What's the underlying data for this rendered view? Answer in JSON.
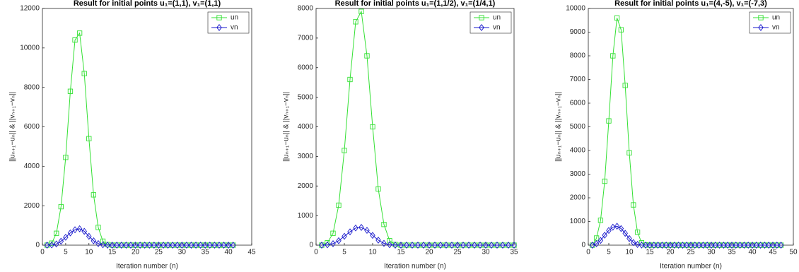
{
  "chart_data": [
    {
      "type": "line",
      "title": "Result for initial points u₁=(1,1), v₁=(1,1)",
      "x_label": "Iteration number (n)",
      "y_label": "||uₙ₊₁−uₙ|| & ||vₙ₊₁−vₙ||",
      "x": [
        1,
        2,
        3,
        4,
        5,
        6,
        7,
        8,
        9,
        10,
        11,
        12,
        13,
        14,
        15,
        16,
        17,
        18,
        19,
        20,
        21,
        22,
        23,
        24,
        25,
        26,
        27,
        28,
        29,
        30,
        31,
        32,
        33,
        34,
        35,
        36,
        37,
        38,
        39,
        40,
        41
      ],
      "series": [
        {
          "name": "un",
          "color": "#33e033",
          "marker": "square",
          "values": [
            0,
            100,
            600,
            1950,
            4450,
            7800,
            10400,
            10750,
            8700,
            5400,
            2550,
            900,
            200,
            30,
            0,
            0,
            0,
            0,
            0,
            0,
            0,
            0,
            0,
            0,
            0,
            0,
            0,
            0,
            0,
            0,
            0,
            0,
            0,
            0,
            0,
            0,
            0,
            0,
            0,
            0,
            0
          ]
        },
        {
          "name": "vn",
          "color": "#1a1acc",
          "marker": "diamond",
          "values": [
            0,
            10,
            60,
            200,
            400,
            620,
            780,
            830,
            700,
            450,
            220,
            80,
            20,
            0,
            0,
            0,
            0,
            0,
            0,
            0,
            0,
            0,
            0,
            0,
            0,
            0,
            0,
            0,
            0,
            0,
            0,
            0,
            0,
            0,
            0,
            0,
            0,
            0,
            0,
            0,
            0
          ]
        }
      ],
      "xlim": [
        0,
        45
      ],
      "xticks": [
        0,
        5,
        10,
        15,
        20,
        25,
        30,
        35,
        40,
        45
      ],
      "ylim": [
        0,
        12000
      ],
      "yticks": [
        0,
        2000,
        4000,
        6000,
        8000,
        10000,
        12000
      ],
      "legend": "top-right"
    },
    {
      "type": "line",
      "title": "Result for initial points u₁=(1,1/2), v₁=(1/4,1)",
      "x_label": "Iteration number (n)",
      "y_label": "||uₙ₊₁−uₙ|| & ||vₙ₊₁−vₙ||",
      "x": [
        1,
        2,
        3,
        4,
        5,
        6,
        7,
        8,
        9,
        10,
        11,
        12,
        13,
        14,
        15,
        16,
        17,
        18,
        19,
        20,
        21,
        22,
        23,
        24,
        25,
        26,
        27,
        28,
        29,
        30,
        31,
        32,
        33,
        34,
        35
      ],
      "series": [
        {
          "name": "un",
          "color": "#33e033",
          "marker": "square",
          "values": [
            0,
            80,
            400,
            1350,
            3200,
            5600,
            7550,
            7900,
            6400,
            4000,
            1900,
            700,
            150,
            20,
            0,
            0,
            0,
            0,
            0,
            0,
            0,
            0,
            0,
            0,
            0,
            0,
            0,
            0,
            0,
            0,
            0,
            0,
            0,
            0,
            0
          ]
        },
        {
          "name": "vn",
          "color": "#1a1acc",
          "marker": "diamond",
          "values": [
            0,
            10,
            50,
            150,
            300,
            450,
            580,
            600,
            500,
            330,
            170,
            60,
            15,
            0,
            0,
            0,
            0,
            0,
            0,
            0,
            0,
            0,
            0,
            0,
            0,
            0,
            0,
            0,
            0,
            0,
            0,
            0,
            0,
            0,
            0
          ]
        }
      ],
      "xlim": [
        0,
        35
      ],
      "xticks": [
        0,
        5,
        10,
        15,
        20,
        25,
        30,
        35
      ],
      "ylim": [
        0,
        8000
      ],
      "yticks": [
        0,
        1000,
        2000,
        3000,
        4000,
        5000,
        6000,
        7000,
        8000
      ],
      "legend": "top-right"
    },
    {
      "type": "line",
      "title": "Result for initial points u₁=(4,-5), v₁=(-7,3)",
      "x_label": "Iteration number (n)",
      "y_label": "||uₙ₊₁−uₙ|| & ||vₙ₊₁−vₙ||",
      "x": [
        1,
        2,
        3,
        4,
        5,
        6,
        7,
        8,
        9,
        10,
        11,
        12,
        13,
        14,
        15,
        16,
        17,
        18,
        19,
        20,
        21,
        22,
        23,
        24,
        25,
        26,
        27,
        28,
        29,
        30,
        31,
        32,
        33,
        34,
        35,
        36,
        37,
        38,
        39,
        40,
        41,
        42,
        43,
        44,
        45,
        46,
        47
      ],
      "series": [
        {
          "name": "un",
          "color": "#33e033",
          "marker": "square",
          "values": [
            0,
            300,
            1050,
            2700,
            5250,
            8000,
            9600,
            9100,
            6750,
            3900,
            1700,
            550,
            100,
            10,
            0,
            0,
            0,
            0,
            0,
            0,
            0,
            0,
            0,
            0,
            0,
            0,
            0,
            0,
            0,
            0,
            0,
            0,
            0,
            0,
            0,
            0,
            0,
            0,
            0,
            0,
            0,
            0,
            0,
            0,
            0,
            0,
            0
          ]
        },
        {
          "name": "vn",
          "color": "#1a1acc",
          "marker": "diamond",
          "values": [
            0,
            60,
            200,
            420,
            620,
            760,
            800,
            700,
            500,
            280,
            110,
            30,
            5,
            0,
            0,
            0,
            0,
            0,
            0,
            0,
            0,
            0,
            0,
            0,
            0,
            0,
            0,
            0,
            0,
            0,
            0,
            0,
            0,
            0,
            0,
            0,
            0,
            0,
            0,
            0,
            0,
            0,
            0,
            0,
            0,
            0,
            0
          ]
        }
      ],
      "xlim": [
        0,
        50
      ],
      "xticks": [
        0,
        5,
        10,
        15,
        20,
        25,
        30,
        35,
        40,
        45,
        50
      ],
      "ylim": [
        0,
        10000
      ],
      "yticks": [
        0,
        1000,
        2000,
        3000,
        4000,
        5000,
        6000,
        7000,
        8000,
        9000,
        10000
      ],
      "legend": "top-right"
    }
  ]
}
